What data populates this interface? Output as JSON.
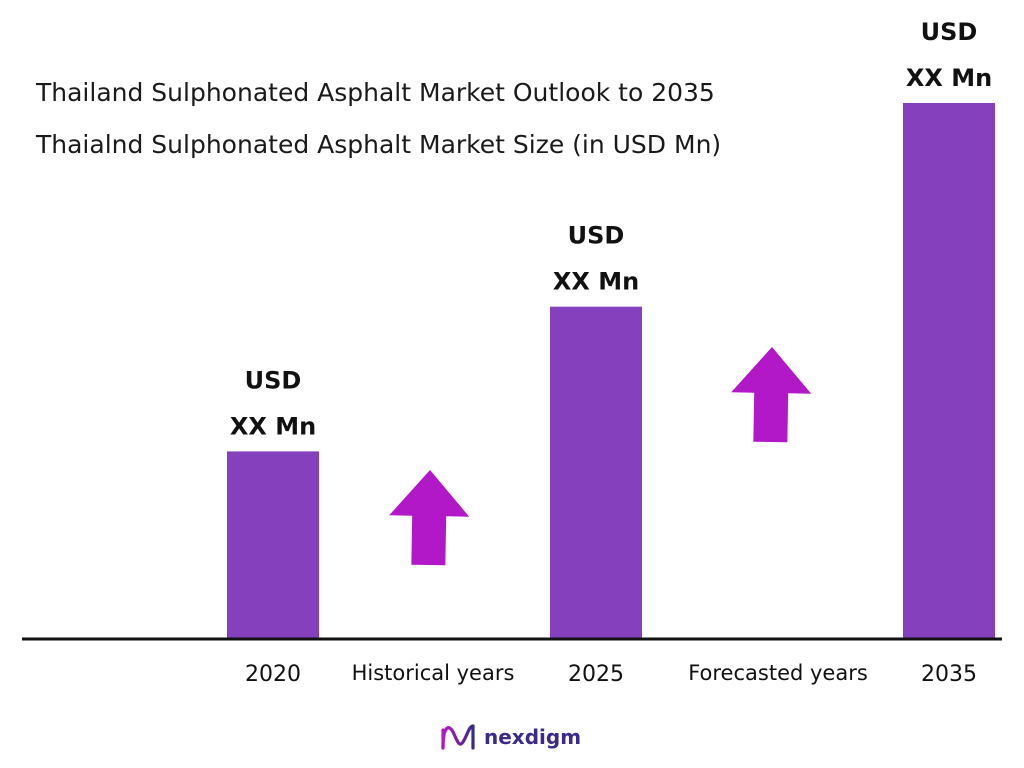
{
  "chart_data": {
    "type": "bar",
    "title": "Thailand Sulphonated Asphalt Market Outlook to 2035",
    "subtitle": "Thaialnd Sulphonated Asphalt Market Size (in USD Mn)",
    "categories": [
      "2020",
      "2025",
      "2035"
    ],
    "values": [
      35,
      62,
      100
    ],
    "value_labels": [
      {
        "line1": "USD",
        "line2": "XX Mn"
      },
      {
        "line1": "USD",
        "line2": "XX Mn"
      },
      {
        "line1": "USD",
        "line2": "XX Mn"
      }
    ],
    "period_labels": [
      "Historical years",
      "Forecasted years"
    ],
    "ylim": [
      0,
      100
    ],
    "grid": false,
    "bar_color": "#8440bd",
    "arrow_color": "#b318c8",
    "axis_color": "#111111"
  },
  "brand": {
    "name": "nexdigm",
    "color": "#3a2a8a",
    "icon": "nexdigm-logo-icon"
  }
}
